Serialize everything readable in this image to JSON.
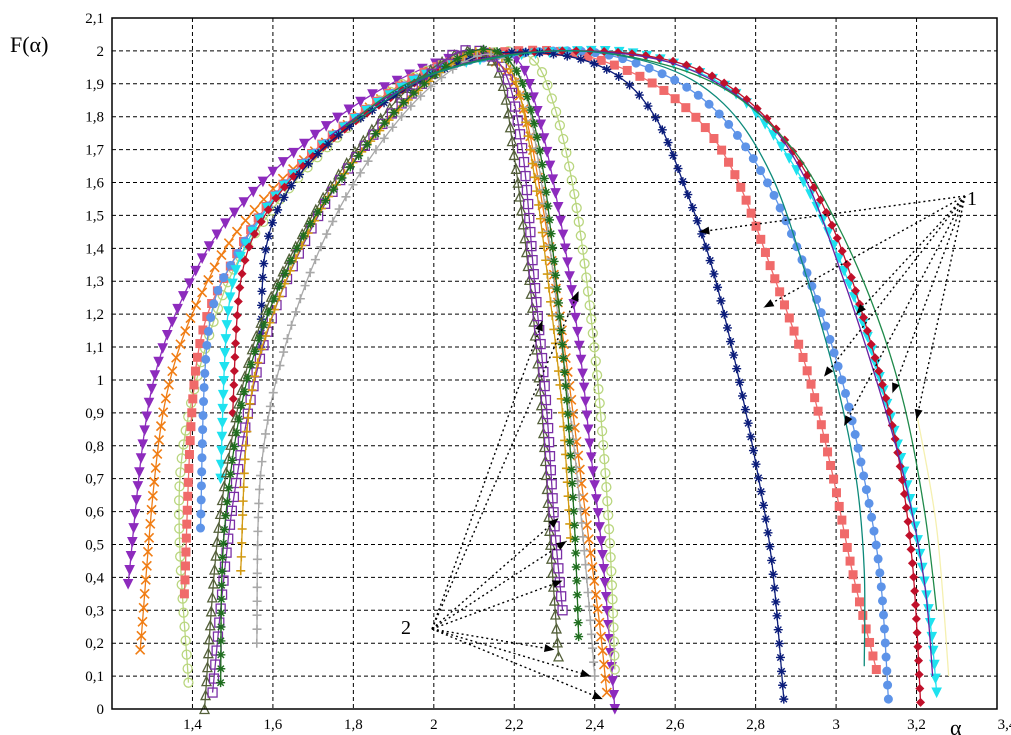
{
  "chart_data": {
    "type": "line",
    "title": "",
    "xlabel": "α",
    "ylabel": "F(α)",
    "xlim": [
      1.2,
      3.4
    ],
    "ylim": [
      0,
      2.1
    ],
    "grid": true,
    "x_ticks": [
      "1,4",
      "1,6",
      "1,8",
      "2",
      "2,2",
      "2,4",
      "2,6",
      "2,8",
      "3",
      "3,2",
      "3,4"
    ],
    "y_ticks": [
      "0",
      "0,1",
      "0,2",
      "0,3",
      "0,4",
      "0,5",
      "0,6",
      "0,7",
      "0,8",
      "0,9",
      "1",
      "1,1",
      "1,2",
      "1,3",
      "1,4",
      "1,5",
      "1,6",
      "1,7",
      "1,8",
      "1,9",
      "2",
      "2,1"
    ],
    "annotations": [
      {
        "label": "1",
        "targets": [
          [
            2.66,
            1.45
          ],
          [
            2.82,
            1.22
          ],
          [
            2.97,
            1.01
          ],
          [
            3.02,
            0.86
          ],
          [
            3.05,
            1.2
          ],
          [
            3.14,
            0.96
          ],
          [
            3.2,
            0.88
          ]
        ]
      },
      {
        "label": "2",
        "targets": [
          [
            2.27,
            1.18
          ],
          [
            2.31,
            0.58
          ],
          [
            2.33,
            0.51
          ],
          [
            2.36,
            1.27
          ],
          [
            2.32,
            0.39
          ],
          [
            2.3,
            0.18
          ],
          [
            2.39,
            0.1
          ],
          [
            2.42,
            0.03
          ]
        ]
      }
    ],
    "series": [
      {
        "values": [
          [
            1.24,
            0.38
          ],
          [
            1.3,
            0.98
          ],
          [
            1.42,
            1.36
          ],
          [
            1.55,
            1.57
          ],
          [
            1.7,
            1.74
          ],
          [
            1.85,
            1.87
          ],
          [
            2.0,
            1.96
          ],
          [
            2.1,
            1.99
          ],
          [
            2.2,
            1.98
          ],
          [
            2.25,
            1.85
          ],
          [
            2.31,
            1.52
          ],
          [
            2.36,
            1.12
          ],
          [
            2.39,
            0.78
          ],
          [
            2.42,
            0.46
          ],
          [
            2.45,
            0.0
          ]
        ],
        "color": "#8d2bbd",
        "marker": "triangle-down"
      },
      {
        "values": [
          [
            1.27,
            0.18
          ],
          [
            1.33,
            0.92
          ],
          [
            1.45,
            1.33
          ],
          [
            1.6,
            1.58
          ],
          [
            1.75,
            1.74
          ],
          [
            1.9,
            1.88
          ],
          [
            2.05,
            1.97
          ],
          [
            2.15,
            1.97
          ],
          [
            2.22,
            1.84
          ],
          [
            2.28,
            1.46
          ],
          [
            2.33,
            1.05
          ],
          [
            2.37,
            0.66
          ],
          [
            2.41,
            0.28
          ],
          [
            2.43,
            0.05
          ]
        ],
        "color": "#f07d14",
        "marker": "x"
      },
      {
        "values": [
          [
            1.39,
            0.08
          ],
          [
            1.37,
            0.72
          ],
          [
            1.47,
            1.24
          ],
          [
            1.6,
            1.52
          ],
          [
            1.78,
            1.76
          ],
          [
            1.95,
            1.92
          ],
          [
            2.12,
            1.99
          ],
          [
            2.24,
            1.98
          ],
          [
            2.3,
            1.83
          ],
          [
            2.35,
            1.56
          ],
          [
            2.39,
            1.2
          ],
          [
            2.42,
            0.82
          ],
          [
            2.44,
            0.45
          ],
          [
            2.45,
            0.12
          ]
        ],
        "color": "#b9d67e",
        "marker": "circle-open"
      },
      {
        "values": [
          [
            1.38,
            0.35
          ],
          [
            1.41,
            1.05
          ],
          [
            1.5,
            1.36
          ],
          [
            1.65,
            1.63
          ],
          [
            1.85,
            1.84
          ],
          [
            2.05,
            1.97
          ],
          [
            2.3,
            2.0
          ],
          [
            2.5,
            1.93
          ],
          [
            2.65,
            1.8
          ],
          [
            2.75,
            1.62
          ],
          [
            2.85,
            1.3
          ],
          [
            2.93,
            1.02
          ],
          [
            2.99,
            0.72
          ],
          [
            3.04,
            0.42
          ],
          [
            3.1,
            0.12
          ]
        ],
        "color": "#f06a6a",
        "marker": "square"
      },
      {
        "values": [
          [
            1.42,
            0.55
          ],
          [
            1.44,
            1.15
          ],
          [
            1.52,
            1.4
          ],
          [
            1.67,
            1.65
          ],
          [
            1.86,
            1.84
          ],
          [
            2.05,
            1.96
          ],
          [
            2.35,
            2.0
          ],
          [
            2.55,
            1.94
          ],
          [
            2.7,
            1.82
          ],
          [
            2.82,
            1.62
          ],
          [
            2.92,
            1.35
          ],
          [
            3.01,
            1.02
          ],
          [
            3.07,
            0.7
          ],
          [
            3.11,
            0.4
          ],
          [
            3.13,
            0.03
          ]
        ],
        "color": "#5d93e8",
        "marker": "circle"
      },
      {
        "values": [
          [
            1.47,
            0.7
          ],
          [
            1.49,
            1.22
          ],
          [
            1.55,
            1.45
          ],
          [
            1.68,
            1.66
          ],
          [
            1.86,
            1.84
          ],
          [
            2.06,
            1.96
          ],
          [
            2.4,
            2.0
          ],
          [
            2.6,
            1.96
          ],
          [
            2.77,
            1.85
          ],
          [
            2.92,
            1.6
          ],
          [
            3.03,
            1.3
          ],
          [
            3.11,
            1.0
          ],
          [
            3.18,
            0.66
          ],
          [
            3.23,
            0.3
          ],
          [
            3.25,
            0.05
          ]
        ],
        "color": "#1ee2ef",
        "marker": "triangle-down"
      },
      {
        "values": [
          [
            1.5,
            0.9
          ],
          [
            1.52,
            1.3
          ],
          [
            1.58,
            1.5
          ],
          [
            1.7,
            1.68
          ],
          [
            1.87,
            1.84
          ],
          [
            2.08,
            1.97
          ],
          [
            2.38,
            2.0
          ],
          [
            2.62,
            1.96
          ],
          [
            2.78,
            1.85
          ],
          [
            2.9,
            1.68
          ],
          [
            3.0,
            1.44
          ],
          [
            3.08,
            1.14
          ],
          [
            3.15,
            0.8
          ],
          [
            3.19,
            0.44
          ],
          [
            3.21,
            0.02
          ]
        ],
        "color": "#c0102a",
        "marker": "diamond"
      },
      {
        "values": [
          [
            1.57,
            1.1
          ],
          [
            1.58,
            1.38
          ],
          [
            1.63,
            1.56
          ],
          [
            1.74,
            1.72
          ],
          [
            1.9,
            1.86
          ],
          [
            2.1,
            1.98
          ],
          [
            2.3,
            1.99
          ],
          [
            2.45,
            1.93
          ],
          [
            2.55,
            1.8
          ],
          [
            2.62,
            1.6
          ],
          [
            2.69,
            1.35
          ],
          [
            2.75,
            1.05
          ],
          [
            2.8,
            0.75
          ],
          [
            2.84,
            0.45
          ],
          [
            2.87,
            0.03
          ]
        ],
        "color": "#0b1c7a",
        "marker": "star"
      },
      {
        "values": [
          [
            1.43,
            0.0
          ],
          [
            1.47,
            0.6
          ],
          [
            1.55,
            1.1
          ],
          [
            1.68,
            1.46
          ],
          [
            1.82,
            1.72
          ],
          [
            1.95,
            1.9
          ],
          [
            2.08,
            2.0
          ],
          [
            2.16,
            1.94
          ],
          [
            2.2,
            1.68
          ],
          [
            2.24,
            1.28
          ],
          [
            2.27,
            0.88
          ],
          [
            2.29,
            0.5
          ],
          [
            2.31,
            0.16
          ]
        ],
        "color": "#54603a",
        "marker": "triangle-up"
      },
      {
        "values": [
          [
            1.45,
            0.05
          ],
          [
            1.5,
            0.62
          ],
          [
            1.58,
            1.12
          ],
          [
            1.7,
            1.47
          ],
          [
            1.84,
            1.73
          ],
          [
            1.97,
            1.9
          ],
          [
            2.07,
            2.0
          ],
          [
            2.17,
            1.95
          ],
          [
            2.22,
            1.7
          ],
          [
            2.25,
            1.3
          ],
          [
            2.28,
            0.92
          ],
          [
            2.3,
            0.56
          ],
          [
            2.32,
            0.3
          ]
        ],
        "color": "#7b2fa6",
        "marker": "square-open"
      },
      {
        "values": [
          [
            1.52,
            0.42
          ],
          [
            1.54,
            0.9
          ],
          [
            1.6,
            1.2
          ],
          [
            1.72,
            1.52
          ],
          [
            1.86,
            1.75
          ],
          [
            2.0,
            1.92
          ],
          [
            2.12,
            2.0
          ],
          [
            2.2,
            1.92
          ],
          [
            2.25,
            1.62
          ],
          [
            2.29,
            1.24
          ],
          [
            2.32,
            0.9
          ],
          [
            2.34,
            0.52
          ]
        ],
        "color": "#d29a12",
        "marker": "plus"
      },
      {
        "values": [
          [
            1.56,
            0.2
          ],
          [
            1.57,
            0.72
          ],
          [
            1.63,
            1.1
          ],
          [
            1.74,
            1.46
          ],
          [
            1.88,
            1.74
          ],
          [
            2.02,
            1.92
          ],
          [
            2.14,
            1.99
          ],
          [
            2.22,
            1.9
          ],
          [
            2.27,
            1.58
          ],
          [
            2.31,
            1.18
          ],
          [
            2.35,
            0.78
          ],
          [
            2.38,
            0.4
          ],
          [
            2.4,
            0.1
          ]
        ],
        "color": "#a8a8a8",
        "marker": "plus"
      },
      {
        "values": [
          [
            1.47,
            0.08
          ],
          [
            1.48,
            0.55
          ],
          [
            1.54,
            1.02
          ],
          [
            1.66,
            1.4
          ],
          [
            1.8,
            1.66
          ],
          [
            1.94,
            1.86
          ],
          [
            2.1,
            2.0
          ],
          [
            2.2,
            1.95
          ],
          [
            2.26,
            1.72
          ],
          [
            2.3,
            1.35
          ],
          [
            2.33,
            0.95
          ],
          [
            2.35,
            0.55
          ],
          [
            2.36,
            0.22
          ]
        ],
        "color": "#1f6e1f",
        "marker": "star"
      },
      {
        "values": [
          [
            1.74,
            1.74
          ],
          [
            1.9,
            1.87
          ],
          [
            2.1,
            1.97
          ],
          [
            2.35,
            2.0
          ],
          [
            2.6,
            1.96
          ],
          [
            2.8,
            1.82
          ],
          [
            2.92,
            1.62
          ],
          [
            3.02,
            1.3
          ],
          [
            3.1,
            1.0
          ],
          [
            3.17,
            0.7
          ],
          [
            3.22,
            0.38
          ],
          [
            3.24,
            0.1
          ]
        ],
        "color": "#6b1fa0",
        "marker": "none"
      },
      {
        "values": [
          [
            1.78,
            1.77
          ],
          [
            1.95,
            1.91
          ],
          [
            2.2,
            1.99
          ],
          [
            2.45,
            1.99
          ],
          [
            2.7,
            1.9
          ],
          [
            2.88,
            1.72
          ],
          [
            3.0,
            1.48
          ],
          [
            3.1,
            1.2
          ],
          [
            3.17,
            0.92
          ],
          [
            3.22,
            0.6
          ],
          [
            3.25,
            0.3
          ]
        ],
        "color": "#1f8a4a",
        "marker": "none"
      },
      {
        "values": [
          [
            1.8,
            1.78
          ],
          [
            2.0,
            1.93
          ],
          [
            2.3,
            2.0
          ],
          [
            2.55,
            1.96
          ],
          [
            2.72,
            1.84
          ],
          [
            2.84,
            1.62
          ],
          [
            2.93,
            1.3
          ],
          [
            3.0,
            1.0
          ],
          [
            3.05,
            0.7
          ],
          [
            3.07,
            0.42
          ],
          [
            3.07,
            0.13
          ]
        ],
        "color": "#0d8a7a",
        "marker": "none"
      },
      {
        "values": [
          [
            3.2,
            0.9
          ],
          [
            3.25,
            0.55
          ],
          [
            3.28,
            0.1
          ]
        ],
        "color": "#f5f0b0",
        "marker": "none"
      }
    ]
  },
  "annotation_labels": {
    "one": "1",
    "two": "2"
  }
}
